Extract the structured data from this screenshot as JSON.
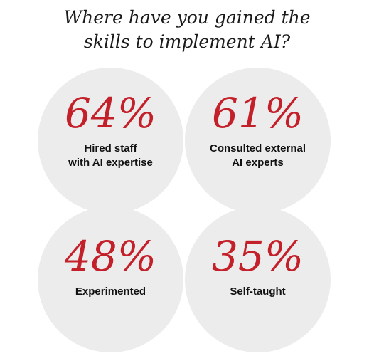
{
  "title_lines": [
    "Where have you gained the",
    "skills to implement AI?"
  ],
  "chart_data": {
    "type": "bubble-stats",
    "title": "Where have you gained the skills to implement AI?",
    "unit": "%",
    "items": [
      {
        "value": 64,
        "value_label": "64%",
        "label_lines": [
          "Hired staff",
          "with AI expertise"
        ]
      },
      {
        "value": 61,
        "value_label": "61%",
        "label_lines": [
          "Consulted external",
          "AI experts"
        ]
      },
      {
        "value": 48,
        "value_label": "48%",
        "label_lines": [
          "Experimented"
        ]
      },
      {
        "value": 35,
        "value_label": "35%",
        "label_lines": [
          "Self-taught"
        ]
      }
    ]
  },
  "colors": {
    "accent": "#c4202a",
    "bubble": "#ececec",
    "text": "#111111"
  }
}
